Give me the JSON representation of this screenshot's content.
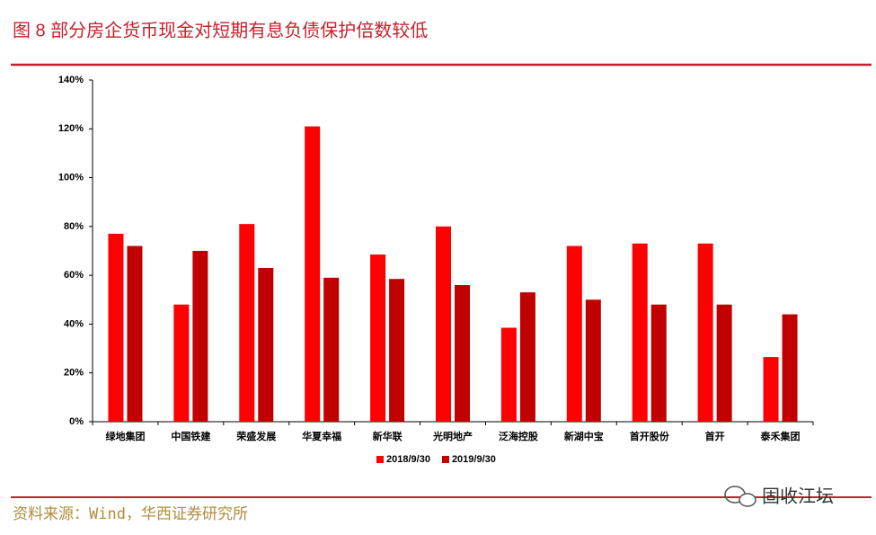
{
  "chart_data": {
    "type": "bar",
    "title": "图 8 部分房企货币现金对短期有息负债保护倍数较低",
    "categories": [
      "绿地集团",
      "中国铁建",
      "荣盛发展",
      "华夏幸福",
      "新华联",
      "光明地产",
      "泛海控股",
      "新湖中宝",
      "首开股份",
      "首开",
      "泰禾集团"
    ],
    "series": [
      {
        "name": "2018/9/30",
        "color": "#ff0000",
        "values": [
          77,
          48,
          81,
          121,
          68.5,
          80,
          38.5,
          72,
          73,
          73,
          26.5
        ]
      },
      {
        "name": "2019/9/30",
        "color": "#c00000",
        "values": [
          72,
          70,
          63,
          59,
          58.5,
          56,
          53,
          50,
          48,
          48,
          44
        ]
      }
    ],
    "ylim": [
      0,
      140
    ],
    "yticks": [
      {
        "value": 0,
        "label": "0%"
      },
      {
        "value": 20,
        "label": "20%"
      },
      {
        "value": 40,
        "label": "40%"
      },
      {
        "value": 60,
        "label": "60%"
      },
      {
        "value": 80,
        "label": "80%"
      },
      {
        "value": 100,
        "label": "100%"
      },
      {
        "value": 120,
        "label": "120%"
      },
      {
        "value": 140,
        "label": "140%"
      }
    ],
    "grid": false,
    "legend": "bottom",
    "source": "资料来源：Wind，华西证券研究所",
    "watermark": "固收江坛"
  }
}
